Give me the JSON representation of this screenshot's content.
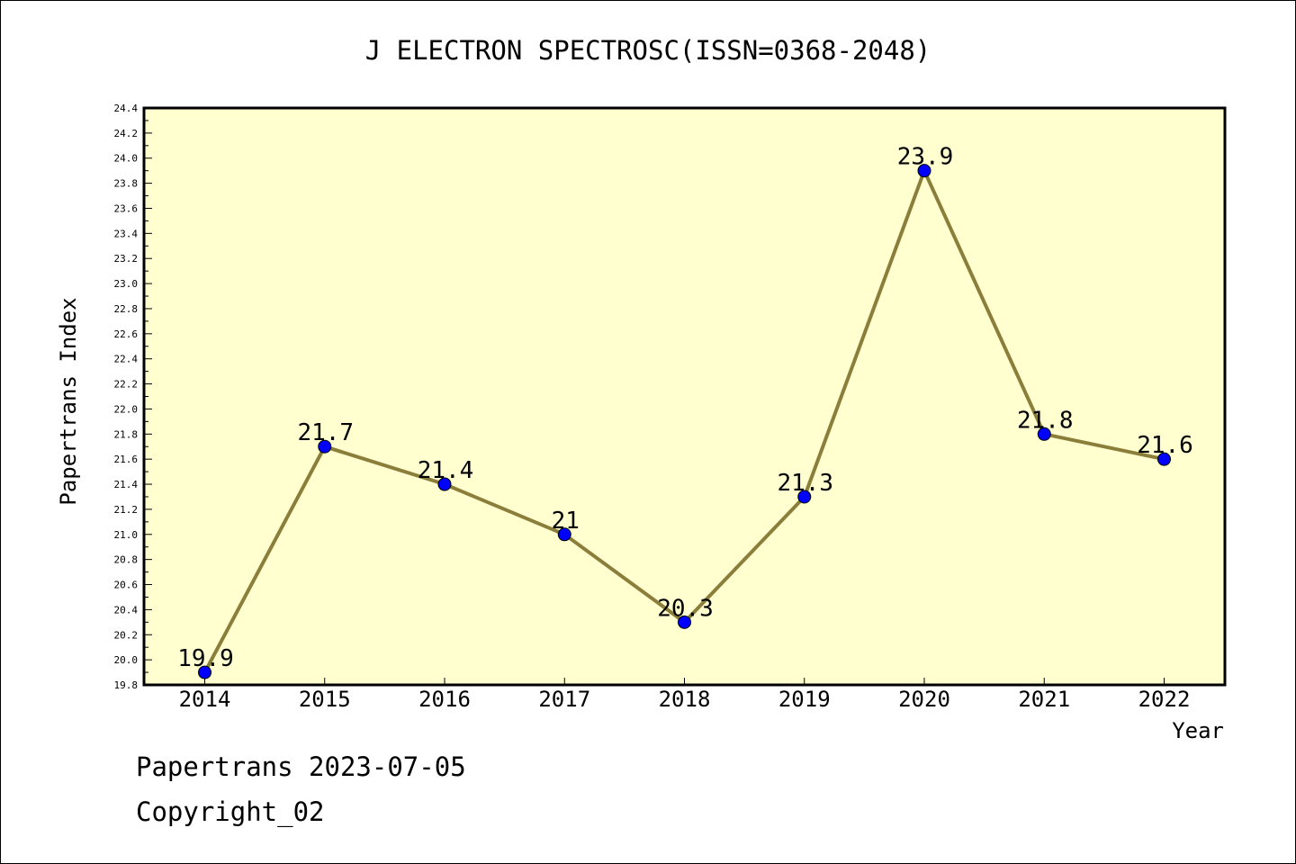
{
  "chart_data": {
    "type": "line",
    "title": "J ELECTRON SPECTROSC(ISSN=0368-2048)",
    "xlabel": "Year",
    "ylabel": "Papertrans Index",
    "categories": [
      "2014",
      "2015",
      "2016",
      "2017",
      "2018",
      "2019",
      "2020",
      "2021",
      "2022"
    ],
    "values": [
      19.9,
      21.7,
      21.4,
      21.0,
      20.3,
      21.3,
      23.9,
      21.8,
      21.6
    ],
    "data_labels": [
      "19.9",
      "21.7",
      "21.4",
      "21",
      "20.3",
      "21.3",
      "23.9",
      "21.8",
      "21.6"
    ],
    "ylim": [
      19.8,
      24.4
    ],
    "ytick_step": 0.2,
    "ytick_labels": [
      "19.8",
      "20.0",
      "20.2",
      "20.4",
      "20.6",
      "20.8",
      "21.0",
      "21.2",
      "21.4",
      "21.6",
      "21.8",
      "22.0",
      "22.2",
      "22.4",
      "22.6",
      "22.8",
      "23.0",
      "23.2",
      "23.4",
      "23.6",
      "23.8",
      "24.0",
      "24.2",
      "24.4"
    ],
    "grid": false,
    "colors": {
      "plot_background": "#ffffd0",
      "line": "#8b7d3a",
      "marker": "#0000ff"
    }
  },
  "footer": {
    "line1": "Papertrans 2023-07-05",
    "line2": "Copyright_02"
  }
}
